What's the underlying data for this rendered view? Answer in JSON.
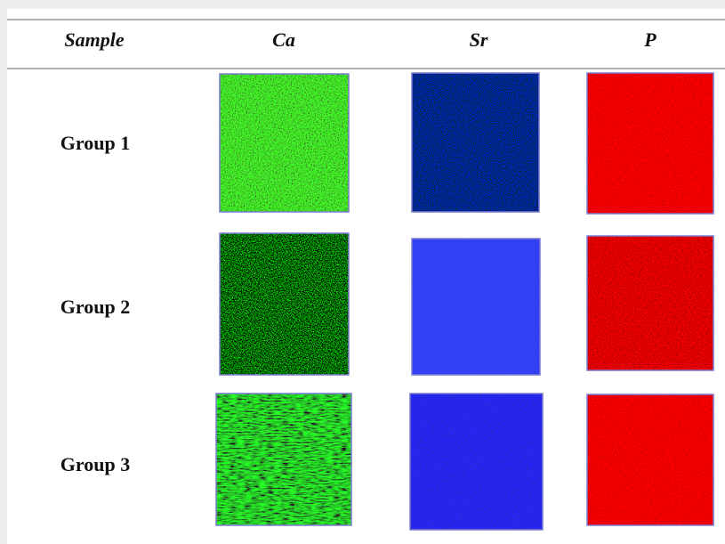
{
  "table": {
    "header": [
      "Sample",
      "Ca",
      "Sr",
      "P"
    ],
    "rows": [
      [
        "Group 1"
      ],
      [
        "Group 2"
      ],
      [
        "Group 3"
      ]
    ]
  }
}
